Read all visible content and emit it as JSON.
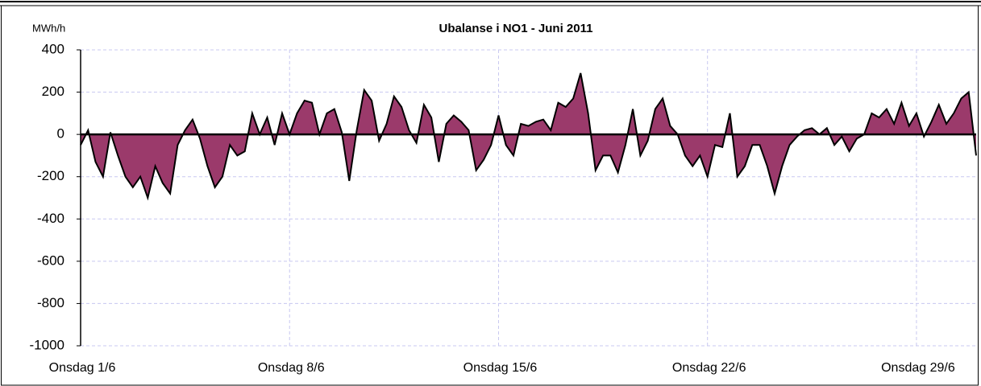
{
  "chart_data": {
    "type": "area",
    "title": "Ubalanse i NO1 -  Juni 2011",
    "y_label": "MWh/h",
    "x": [
      1,
      1.25,
      1.5,
      1.75,
      2,
      2.25,
      2.5,
      2.75,
      3,
      3.25,
      3.5,
      3.75,
      4,
      4.25,
      4.5,
      4.75,
      5,
      5.25,
      5.5,
      5.75,
      6,
      6.25,
      6.5,
      6.75,
      7,
      7.25,
      7.5,
      7.75,
      8,
      8.25,
      8.5,
      8.75,
      9,
      9.25,
      9.5,
      9.75,
      10,
      10.25,
      10.5,
      10.75,
      11,
      11.25,
      11.5,
      11.75,
      12,
      12.25,
      12.5,
      12.75,
      13,
      13.25,
      13.5,
      13.75,
      14,
      14.25,
      14.5,
      14.75,
      15,
      15.25,
      15.5,
      15.75,
      16,
      16.25,
      16.5,
      16.75,
      17,
      17.25,
      17.5,
      17.75,
      18,
      18.25,
      18.5,
      18.75,
      19,
      19.25,
      19.5,
      19.75,
      20,
      20.25,
      20.5,
      20.75,
      21,
      21.25,
      21.5,
      21.75,
      22,
      22.25,
      22.5,
      22.75,
      23,
      23.25,
      23.5,
      23.75,
      24,
      24.25,
      24.5,
      24.75,
      25,
      25.25,
      25.5,
      25.75,
      26,
      26.25,
      26.5,
      26.75,
      27,
      27.25,
      27.5,
      27.75,
      28,
      28.25,
      28.5,
      28.75,
      29,
      29.25,
      29.5,
      29.75,
      30,
      30.25,
      30.5,
      30.75,
      31
    ],
    "series": [
      {
        "color": "#9b3a6b",
        "line_color": "#000000",
        "values": [
          -50,
          20,
          -130,
          -200,
          10,
          -100,
          -200,
          -250,
          -200,
          -300,
          -150,
          -230,
          -280,
          -50,
          20,
          70,
          -20,
          -150,
          -250,
          -200,
          -50,
          -100,
          -80,
          100,
          0,
          80,
          -50,
          100,
          0,
          100,
          160,
          150,
          0,
          100,
          120,
          10,
          -220,
          20,
          210,
          160,
          -30,
          50,
          180,
          130,
          20,
          -40,
          140,
          80,
          -130,
          50,
          90,
          60,
          20,
          -170,
          -120,
          -50,
          90,
          -50,
          -100,
          50,
          40,
          60,
          70,
          20,
          150,
          130,
          170,
          290,
          100,
          -170,
          -100,
          -100,
          -180,
          -50,
          120,
          -100,
          -30,
          120,
          170,
          40,
          0,
          -100,
          -150,
          -100,
          -200,
          -50,
          -60,
          100,
          -200,
          -150,
          -50,
          -50,
          -150,
          -280,
          -150,
          -50,
          -10,
          20,
          30,
          0,
          30,
          -50,
          -10,
          -80,
          -20,
          0,
          100,
          80,
          120,
          50,
          150,
          40,
          100,
          -10,
          60,
          140,
          50,
          100,
          170,
          200,
          -100
        ]
      }
    ],
    "xlim": [
      1,
      31
    ],
    "xticks": [
      {
        "value": 1,
        "label": "Onsdag 1/6"
      },
      {
        "value": 8,
        "label": "Onsdag 8/6"
      },
      {
        "value": 15,
        "label": "Onsdag 15/6"
      },
      {
        "value": 22,
        "label": "Onsdag 22/6"
      },
      {
        "value": 29,
        "label": "Onsdag 29/6"
      }
    ],
    "ylim": [
      -1000,
      400
    ],
    "yticks": [
      400,
      200,
      0,
      -200,
      -400,
      -600,
      -800,
      -1000
    ],
    "grid": true
  }
}
